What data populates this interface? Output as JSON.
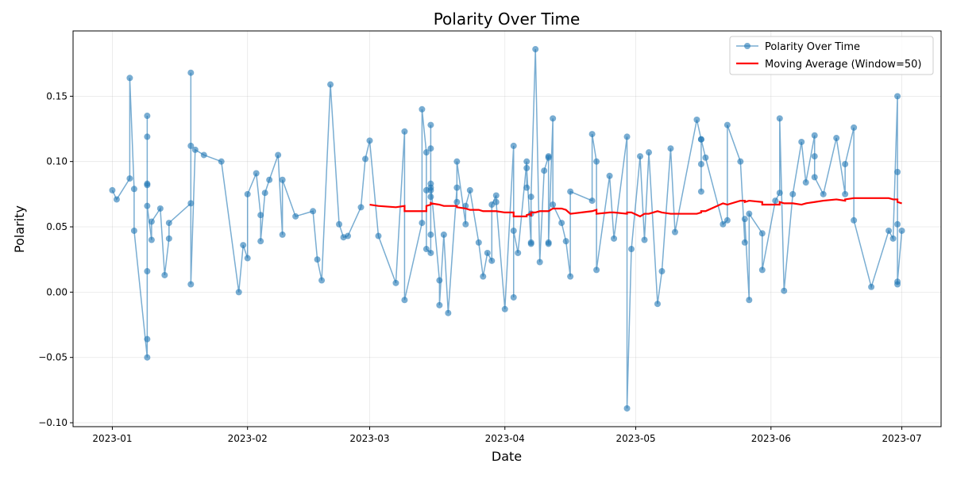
{
  "chart_data": {
    "type": "line",
    "title": "Polarity Over Time",
    "x_label": "Date",
    "y_label": "Polarity",
    "x": [
      "2023-01-01",
      "2023-01-02",
      "2023-01-05",
      "2023-01-05",
      "2023-01-06",
      "2023-01-06",
      "2023-01-09",
      "2023-01-09",
      "2023-01-09",
      "2023-01-09",
      "2023-01-09",
      "2023-01-09",
      "2023-01-09",
      "2023-01-09",
      "2023-01-10",
      "2023-01-10",
      "2023-01-12",
      "2023-01-13",
      "2023-01-14",
      "2023-01-14",
      "2023-01-19",
      "2023-01-19",
      "2023-01-19",
      "2023-01-19",
      "2023-01-20",
      "2023-01-22",
      "2023-01-26",
      "2023-01-30",
      "2023-01-31",
      "2023-02-01",
      "2023-02-01",
      "2023-02-03",
      "2023-02-04",
      "2023-02-04",
      "2023-02-05",
      "2023-02-06",
      "2023-02-08",
      "2023-02-09",
      "2023-02-09",
      "2023-02-12",
      "2023-02-16",
      "2023-02-17",
      "2023-02-18",
      "2023-02-20",
      "2023-02-22",
      "2023-02-23",
      "2023-02-24",
      "2023-02-27",
      "2023-02-28",
      "2023-03-01",
      "2023-03-03",
      "2023-03-07",
      "2023-03-09",
      "2023-03-09",
      "2023-03-13",
      "2023-03-13",
      "2023-03-14",
      "2023-03-14",
      "2023-03-14",
      "2023-03-15",
      "2023-03-15",
      "2023-03-15",
      "2023-03-15",
      "2023-03-15",
      "2023-03-15",
      "2023-03-15",
      "2023-03-15",
      "2023-03-17",
      "2023-03-17",
      "2023-03-18",
      "2023-03-19",
      "2023-03-21",
      "2023-03-21",
      "2023-03-21",
      "2023-03-23",
      "2023-03-23",
      "2023-03-24",
      "2023-03-26",
      "2023-03-27",
      "2023-03-28",
      "2023-03-29",
      "2023-03-29",
      "2023-03-30",
      "2023-03-30",
      "2023-04-01",
      "2023-04-03",
      "2023-04-03",
      "2023-04-03",
      "2023-04-04",
      "2023-04-06",
      "2023-04-06",
      "2023-04-06",
      "2023-04-07",
      "2023-04-07",
      "2023-04-07",
      "2023-04-07",
      "2023-04-08",
      "2023-04-09",
      "2023-04-10",
      "2023-04-11",
      "2023-04-11",
      "2023-04-11",
      "2023-04-11",
      "2023-04-12",
      "2023-04-12",
      "2023-04-14",
      "2023-04-15",
      "2023-04-16",
      "2023-04-16",
      "2023-04-21",
      "2023-04-21",
      "2023-04-22",
      "2023-04-22",
      "2023-04-25",
      "2023-04-26",
      "2023-04-29",
      "2023-04-29",
      "2023-04-30",
      "2023-05-02",
      "2023-05-03",
      "2023-05-04",
      "2023-05-06",
      "2023-05-07",
      "2023-05-09",
      "2023-05-10",
      "2023-05-15",
      "2023-05-16",
      "2023-05-16",
      "2023-05-16",
      "2023-05-16",
      "2023-05-17",
      "2023-05-21",
      "2023-05-22",
      "2023-05-22",
      "2023-05-25",
      "2023-05-26",
      "2023-05-26",
      "2023-05-27",
      "2023-05-27",
      "2023-05-30",
      "2023-05-30",
      "2023-06-02",
      "2023-06-03",
      "2023-06-03",
      "2023-06-04",
      "2023-06-06",
      "2023-06-08",
      "2023-06-09",
      "2023-06-11",
      "2023-06-11",
      "2023-06-11",
      "2023-06-13",
      "2023-06-16",
      "2023-06-18",
      "2023-06-18",
      "2023-06-20",
      "2023-06-20",
      "2023-06-24",
      "2023-06-28",
      "2023-06-29",
      "2023-06-30",
      "2023-06-30",
      "2023-06-30",
      "2023-06-30",
      "2023-06-30",
      "2023-07-01"
    ],
    "series": [
      {
        "name": "Polarity Over Time",
        "color": "#1f77b4",
        "marker": true,
        "values": [
          0.078,
          0.071,
          0.087,
          0.164,
          0.079,
          0.047,
          -0.05,
          -0.036,
          0.016,
          0.135,
          0.119,
          0.083,
          0.082,
          0.066,
          0.04,
          0.054,
          0.064,
          0.013,
          0.041,
          0.053,
          0.068,
          0.112,
          0.168,
          0.006,
          0.109,
          0.105,
          0.1,
          0.0,
          0.036,
          0.026,
          0.075,
          0.091,
          0.059,
          0.039,
          0.076,
          0.086,
          0.105,
          0.044,
          0.086,
          0.058,
          0.062,
          0.025,
          0.009,
          0.159,
          0.052,
          0.042,
          0.043,
          0.065,
          0.102,
          0.116,
          0.043,
          0.007,
          0.123,
          -0.006,
          0.053,
          0.14,
          0.107,
          0.078,
          0.033,
          0.03,
          0.078,
          0.128,
          0.11,
          0.073,
          0.044,
          0.08,
          0.083,
          0.009,
          -0.01,
          0.044,
          -0.016,
          0.08,
          0.069,
          0.1,
          0.052,
          0.066,
          0.078,
          0.038,
          0.012,
          0.03,
          0.024,
          0.067,
          0.074,
          0.069,
          -0.013,
          0.112,
          -0.004,
          0.047,
          0.03,
          0.1,
          0.08,
          0.095,
          0.037,
          0.06,
          0.038,
          0.073,
          0.186,
          0.023,
          0.093,
          0.104,
          0.103,
          0.038,
          0.037,
          0.133,
          0.067,
          0.053,
          0.039,
          0.012,
          0.077,
          0.07,
          0.121,
          0.1,
          0.017,
          0.089,
          0.041,
          0.119,
          -0.089,
          0.033,
          0.104,
          0.04,
          0.107,
          -0.009,
          0.016,
          0.11,
          0.046,
          0.132,
          0.117,
          0.077,
          0.098,
          0.117,
          0.103,
          0.052,
          0.055,
          0.128,
          0.1,
          0.038,
          0.056,
          -0.006,
          0.06,
          0.045,
          0.017,
          0.07,
          0.076,
          0.133,
          0.001,
          0.075,
          0.115,
          0.084,
          0.12,
          0.104,
          0.088,
          0.075,
          0.118,
          0.075,
          0.098,
          0.126,
          0.055,
          0.004,
          0.047,
          0.041,
          0.15,
          0.092,
          0.006,
          0.052,
          0.008,
          0.047
        ]
      },
      {
        "name": "Moving Average (Window=50)",
        "color": "#ff0000",
        "marker": false,
        "values": [
          null,
          null,
          null,
          null,
          null,
          null,
          null,
          null,
          null,
          null,
          null,
          null,
          null,
          null,
          null,
          null,
          null,
          null,
          null,
          null,
          null,
          null,
          null,
          null,
          null,
          null,
          null,
          null,
          null,
          null,
          null,
          null,
          null,
          null,
          null,
          null,
          null,
          null,
          null,
          null,
          null,
          null,
          null,
          null,
          null,
          null,
          null,
          null,
          null,
          0.067,
          0.066,
          0.065,
          0.066,
          0.062,
          0.062,
          0.062,
          0.062,
          0.065,
          0.066,
          0.067,
          0.068,
          0.069,
          0.069,
          0.068,
          0.068,
          0.069,
          0.068,
          0.067,
          0.067,
          0.066,
          0.066,
          0.066,
          0.065,
          0.065,
          0.064,
          0.064,
          0.063,
          0.063,
          0.062,
          0.062,
          0.062,
          0.062,
          0.062,
          0.062,
          0.061,
          0.061,
          0.061,
          0.058,
          0.058,
          0.058,
          0.059,
          0.059,
          0.06,
          0.058,
          0.058,
          0.061,
          0.061,
          0.062,
          0.062,
          0.062,
          0.062,
          0.062,
          0.062,
          0.064,
          0.064,
          0.064,
          0.063,
          0.06,
          0.06,
          0.062,
          0.062,
          0.063,
          0.06,
          0.061,
          0.061,
          0.06,
          0.061,
          0.061,
          0.058,
          0.06,
          0.06,
          0.062,
          0.061,
          0.06,
          0.06,
          0.06,
          0.061,
          0.061,
          0.062,
          0.062,
          0.062,
          0.068,
          0.067,
          0.067,
          0.07,
          0.07,
          0.069,
          0.07,
          0.07,
          0.069,
          0.067,
          0.067,
          0.067,
          0.069,
          0.068,
          0.068,
          0.067,
          0.068,
          0.069,
          0.069,
          0.069,
          0.07,
          0.071,
          0.07,
          0.071,
          0.072,
          0.072,
          0.072,
          0.072,
          0.071,
          0.071,
          0.07,
          0.071,
          0.071,
          0.069,
          0.068
        ]
      }
    ],
    "xlim": [
      "2022-12-23",
      "2023-07-10"
    ],
    "xticks": [
      "2023-01",
      "2023-02",
      "2023-03",
      "2023-04",
      "2023-05",
      "2023-06",
      "2023-07"
    ],
    "ylim": [
      -0.103,
      0.2
    ],
    "yticks": [
      {
        "value": -0.1,
        "label": "−0.10"
      },
      {
        "value": -0.05,
        "label": "−0.05"
      },
      {
        "value": 0,
        "label": "0.00"
      },
      {
        "value": 0.05,
        "label": "0.05"
      },
      {
        "value": 0.1,
        "label": "0.10"
      },
      {
        "value": 0.15,
        "label": "0.15"
      }
    ],
    "grid": true,
    "legend": "upper right"
  }
}
